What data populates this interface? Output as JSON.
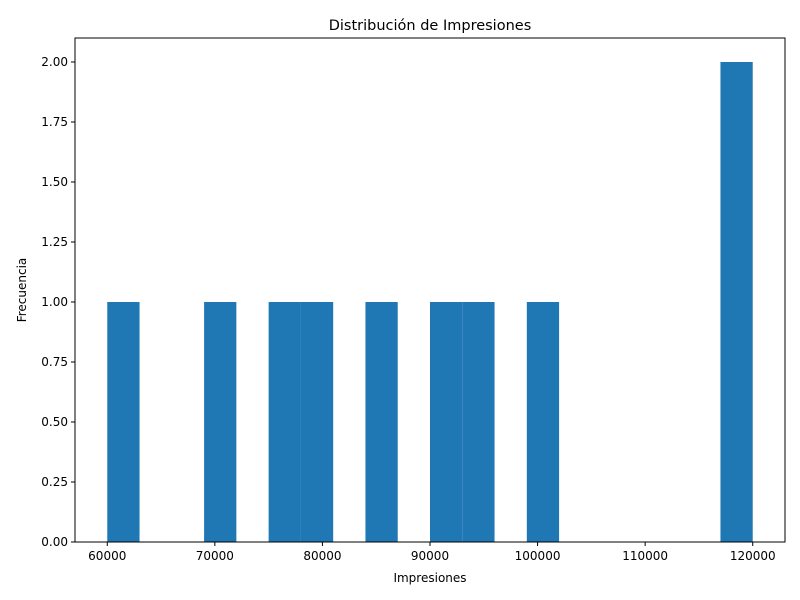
{
  "chart_data": {
    "type": "bar",
    "title": "Distribución de Impresiones",
    "xlabel": "Impresiones",
    "ylabel": "Frecuencia",
    "bar_color": "#1f77b4",
    "xlim": [
      57000,
      123000
    ],
    "ylim": [
      0,
      2.1
    ],
    "x_ticks": [
      60000,
      70000,
      80000,
      90000,
      100000,
      110000,
      120000
    ],
    "x_tick_labels": [
      "60000",
      "70000",
      "80000",
      "90000",
      "100000",
      "110000",
      "120000"
    ],
    "y_ticks": [
      0,
      0.25,
      0.5,
      0.75,
      1.0,
      1.25,
      1.5,
      1.75,
      2.0
    ],
    "y_tick_labels": [
      "0.00",
      "0.25",
      "0.50",
      "0.75",
      "1.00",
      "1.25",
      "1.50",
      "1.75",
      "2.00"
    ],
    "bins": [
      {
        "start": 60000,
        "end": 63000,
        "count": 1
      },
      {
        "start": 63000,
        "end": 66000,
        "count": 0
      },
      {
        "start": 66000,
        "end": 69000,
        "count": 0
      },
      {
        "start": 69000,
        "end": 72000,
        "count": 1
      },
      {
        "start": 72000,
        "end": 75000,
        "count": 0
      },
      {
        "start": 75000,
        "end": 78000,
        "count": 1
      },
      {
        "start": 78000,
        "end": 81000,
        "count": 1
      },
      {
        "start": 81000,
        "end": 84000,
        "count": 0
      },
      {
        "start": 84000,
        "end": 87000,
        "count": 1
      },
      {
        "start": 87000,
        "end": 90000,
        "count": 0
      },
      {
        "start": 90000,
        "end": 93000,
        "count": 1
      },
      {
        "start": 93000,
        "end": 96000,
        "count": 1
      },
      {
        "start": 96000,
        "end": 99000,
        "count": 0
      },
      {
        "start": 99000,
        "end": 102000,
        "count": 1
      },
      {
        "start": 102000,
        "end": 105000,
        "count": 0
      },
      {
        "start": 105000,
        "end": 108000,
        "count": 0
      },
      {
        "start": 108000,
        "end": 111000,
        "count": 0
      },
      {
        "start": 111000,
        "end": 114000,
        "count": 0
      },
      {
        "start": 114000,
        "end": 117000,
        "count": 0
      },
      {
        "start": 117000,
        "end": 120000,
        "count": 2
      }
    ]
  }
}
